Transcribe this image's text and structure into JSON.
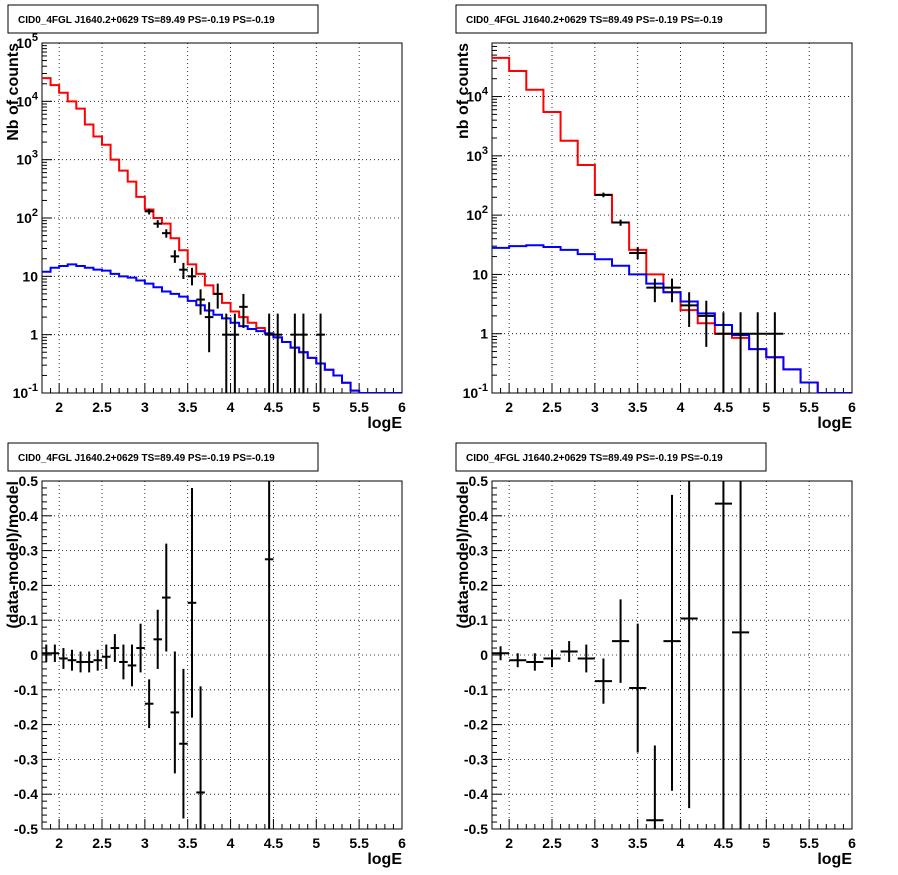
{
  "chart_data": [
    {
      "type": "line",
      "title": "CID0_4FGL J1640.2+0629 TS=89.49 PS=-0.19 PS=-0.19",
      "xlabel": "logE",
      "ylabel": "Nb of counts",
      "log_y": true,
      "xlim": [
        1.8,
        6
      ],
      "ylim": [
        0.1,
        100000
      ],
      "grid": true,
      "x_ticks": [
        "2",
        "2.5",
        "3",
        "3.5",
        "4",
        "4.5",
        "5",
        "5.5",
        "6"
      ],
      "x_tick_values": [
        2,
        2.5,
        3,
        3.5,
        4,
        4.5,
        5,
        5.5,
        6
      ],
      "y_ticks": [
        "10^-1",
        "1",
        "10",
        "10^2",
        "10^3",
        "10^4",
        "10^5"
      ],
      "y_tick_values": [
        0.1,
        1,
        10,
        100,
        1000,
        10000,
        100000
      ],
      "bin_edges": [
        1.8,
        1.9,
        2.0,
        2.1,
        2.2,
        2.3,
        2.4,
        2.5,
        2.6,
        2.7,
        2.8,
        2.9,
        3.0,
        3.1,
        3.2,
        3.3,
        3.4,
        3.5,
        3.6,
        3.7,
        3.8,
        3.9,
        4.0,
        4.1,
        4.2,
        4.3,
        4.4,
        4.5,
        4.6,
        4.7,
        4.8,
        4.9,
        5.0,
        5.1,
        5.2,
        5.3,
        5.4,
        5.5,
        5.6,
        5.7,
        5.8,
        5.9,
        6.0
      ],
      "series": [
        {
          "color": "#ff0000",
          "kind": "step",
          "values": [
            25000,
            19000,
            14000,
            10000,
            7500,
            4000,
            2500,
            1800,
            1000,
            650,
            420,
            230,
            140,
            100,
            80,
            45,
            28,
            16,
            11,
            7,
            5,
            3.5,
            2.5,
            2.0,
            1.6,
            1.3,
            1.05,
            0.9,
            0.75,
            0.6,
            0.5,
            0.4,
            0.32,
            0.25,
            0.2,
            0.15,
            0.11,
            0.1,
            0.1,
            0.1,
            0.1,
            0.1
          ]
        },
        {
          "color": "#0000ff",
          "kind": "step",
          "values": [
            12,
            14,
            15,
            16,
            15,
            14,
            13,
            12.5,
            11,
            10,
            9.5,
            8.5,
            7.5,
            6.5,
            5.5,
            5,
            4.5,
            3.8,
            3.2,
            2.6,
            2.2,
            1.9,
            1.6,
            1.4,
            1.25,
            1.15,
            1.05,
            0.9,
            0.75,
            0.6,
            0.5,
            0.4,
            0.32,
            0.25,
            0.2,
            0.15,
            0.11,
            0.1,
            0.1,
            0.1,
            0.1,
            0.1
          ]
        },
        {
          "color": "#000000",
          "kind": "errorbar",
          "points": [
            {
              "x": 3.05,
              "y": 130,
              "lo": 115,
              "hi": 145,
              "xe": 0.05
            },
            {
              "x": 3.15,
              "y": 80,
              "lo": 68,
              "hi": 92,
              "xe": 0.05
            },
            {
              "x": 3.25,
              "y": 55,
              "lo": 46,
              "hi": 64,
              "xe": 0.05
            },
            {
              "x": 3.35,
              "y": 22,
              "lo": 17,
              "hi": 28,
              "xe": 0.05
            },
            {
              "x": 3.45,
              "y": 13,
              "lo": 9,
              "hi": 17,
              "xe": 0.05
            },
            {
              "x": 3.55,
              "y": 10,
              "lo": 7,
              "hi": 14,
              "xe": 0.05
            },
            {
              "x": 3.65,
              "y": 4,
              "lo": 2.2,
              "hi": 6,
              "xe": 0.05
            },
            {
              "x": 3.75,
              "y": 2,
              "lo": 0.5,
              "hi": 3.6,
              "xe": 0.05
            },
            {
              "x": 3.85,
              "y": 5,
              "lo": 2.8,
              "hi": 7.5,
              "xe": 0.05
            },
            {
              "x": 3.95,
              "y": 1,
              "lo": 0.1,
              "hi": 2.3,
              "xe": 0.05
            },
            {
              "x": 4.05,
              "y": 1,
              "lo": 0.1,
              "hi": 2.3,
              "xe": 0.05
            },
            {
              "x": 4.15,
              "y": 3,
              "lo": 1.3,
              "hi": 5,
              "xe": 0.05
            },
            {
              "x": 4.45,
              "y": 1,
              "lo": 0.1,
              "hi": 2.3,
              "xe": 0.05
            },
            {
              "x": 4.55,
              "y": 1,
              "lo": 0.1,
              "hi": 2.3,
              "xe": 0.05
            },
            {
              "x": 4.75,
              "y": 1,
              "lo": 0.1,
              "hi": 2.3,
              "xe": 0.05
            },
            {
              "x": 4.85,
              "y": 1,
              "lo": 0.1,
              "hi": 2.3,
              "xe": 0.05
            },
            {
              "x": 5.05,
              "y": 1,
              "lo": 0.1,
              "hi": 2.3,
              "xe": 0.05
            }
          ]
        }
      ]
    },
    {
      "type": "line",
      "title": "CID0_4FGL J1640.2+0629 TS=89.49 PS=-0.19 PS=-0.19",
      "xlabel": "logE",
      "ylabel": "nb of counts",
      "log_y": true,
      "xlim": [
        1.8,
        6
      ],
      "ylim": [
        0.1,
        80000
      ],
      "grid": true,
      "x_ticks": [
        "2",
        "2.5",
        "3",
        "3.5",
        "4",
        "4.5",
        "5",
        "5.5",
        "6"
      ],
      "x_tick_values": [
        2,
        2.5,
        3,
        3.5,
        4,
        4.5,
        5,
        5.5,
        6
      ],
      "y_ticks": [
        "10^-1",
        "1",
        "10",
        "10^2",
        "10^3",
        "10^4"
      ],
      "y_tick_values": [
        0.1,
        1,
        10,
        100,
        1000,
        10000
      ],
      "bin_edges": [
        1.8,
        2.0,
        2.2,
        2.4,
        2.6,
        2.8,
        3.0,
        3.2,
        3.4,
        3.6,
        3.8,
        4.0,
        4.2,
        4.4,
        4.6,
        4.8,
        5.0,
        5.2,
        5.4,
        5.6,
        5.8,
        6.0
      ],
      "series": [
        {
          "color": "#ff0000",
          "kind": "step",
          "values": [
            45000,
            27000,
            13000,
            5500,
            1800,
            700,
            220,
            75,
            26,
            10,
            5,
            2.5,
            1.5,
            1.0,
            0.85,
            0.55,
            0.4,
            0.25,
            0.15,
            0.1,
            0.1
          ]
        },
        {
          "color": "#0000ff",
          "kind": "step",
          "values": [
            28,
            30,
            31,
            29,
            26,
            22,
            18,
            14,
            10,
            7,
            5,
            3.5,
            2.2,
            1.4,
            0.95,
            0.55,
            0.4,
            0.25,
            0.15,
            0.1,
            0.1
          ]
        },
        {
          "color": "#000000",
          "kind": "errorbar",
          "points": [
            {
              "x": 3.1,
              "y": 220,
              "lo": 200,
              "hi": 240,
              "xe": 0.1
            },
            {
              "x": 3.3,
              "y": 75,
              "lo": 66,
              "hi": 84,
              "xe": 0.1
            },
            {
              "x": 3.5,
              "y": 23,
              "lo": 18,
              "hi": 29,
              "xe": 0.1
            },
            {
              "x": 3.7,
              "y": 6,
              "lo": 3.4,
              "hi": 8.5,
              "xe": 0.1
            },
            {
              "x": 3.9,
              "y": 6,
              "lo": 3.4,
              "hi": 8.5,
              "xe": 0.1
            },
            {
              "x": 4.1,
              "y": 3,
              "lo": 1.3,
              "hi": 5,
              "xe": 0.1
            },
            {
              "x": 4.3,
              "y": 2,
              "lo": 0.6,
              "hi": 3.6,
              "xe": 0.1
            },
            {
              "x": 4.5,
              "y": 1,
              "lo": 0.1,
              "hi": 2.3,
              "xe": 0.1
            },
            {
              "x": 4.7,
              "y": 1,
              "lo": 0.1,
              "hi": 2.3,
              "xe": 0.1
            },
            {
              "x": 4.9,
              "y": 1,
              "lo": 0.1,
              "hi": 2.3,
              "xe": 0.1
            },
            {
              "x": 5.1,
              "y": 1,
              "lo": 0.1,
              "hi": 2.3,
              "xe": 0.1
            }
          ]
        }
      ]
    },
    {
      "type": "scatter",
      "title": "CID0_4FGL J1640.2+0629 TS=89.49 PS=-0.19 PS=-0.19",
      "xlabel": "logE",
      "ylabel": "(data-model)/model",
      "log_y": false,
      "xlim": [
        1.8,
        6
      ],
      "ylim": [
        -0.5,
        0.5
      ],
      "grid": true,
      "x_ticks": [
        "2",
        "2.5",
        "3",
        "3.5",
        "4",
        "4.5",
        "5",
        "5.5",
        "6"
      ],
      "x_tick_values": [
        2,
        2.5,
        3,
        3.5,
        4,
        4.5,
        5,
        5.5,
        6
      ],
      "y_ticks": [
        "-0.5",
        "-0.4",
        "-0.3",
        "-0.2",
        "-0.1",
        "0",
        "0.1",
        "0.2",
        "0.3",
        "0.4",
        "0.5"
      ],
      "y_tick_values": [
        -0.5,
        -0.4,
        -0.3,
        -0.2,
        -0.1,
        0,
        0.1,
        0.2,
        0.3,
        0.4,
        0.5
      ],
      "series": [
        {
          "color": "#000000",
          "kind": "errorbar",
          "points": [
            {
              "x": 1.85,
              "y": 0.005,
              "lo": -0.02,
              "hi": 0.03,
              "xe": 0.05
            },
            {
              "x": 1.95,
              "y": 0.005,
              "lo": -0.02,
              "hi": 0.03,
              "xe": 0.05
            },
            {
              "x": 2.05,
              "y": -0.01,
              "lo": -0.04,
              "hi": 0.02,
              "xe": 0.05
            },
            {
              "x": 2.15,
              "y": -0.015,
              "lo": -0.045,
              "hi": 0.015,
              "xe": 0.05
            },
            {
              "x": 2.25,
              "y": -0.02,
              "lo": -0.05,
              "hi": 0.01,
              "xe": 0.05
            },
            {
              "x": 2.35,
              "y": -0.02,
              "lo": -0.05,
              "hi": 0.01,
              "xe": 0.05
            },
            {
              "x": 2.45,
              "y": -0.015,
              "lo": -0.045,
              "hi": 0.015,
              "xe": 0.05
            },
            {
              "x": 2.55,
              "y": -0.005,
              "lo": -0.04,
              "hi": 0.03,
              "xe": 0.05
            },
            {
              "x": 2.65,
              "y": 0.02,
              "lo": -0.02,
              "hi": 0.06,
              "xe": 0.05
            },
            {
              "x": 2.75,
              "y": -0.02,
              "lo": -0.07,
              "hi": 0.03,
              "xe": 0.05
            },
            {
              "x": 2.85,
              "y": -0.03,
              "lo": -0.09,
              "hi": 0.03,
              "xe": 0.05
            },
            {
              "x": 2.95,
              "y": 0.02,
              "lo": -0.05,
              "hi": 0.09,
              "xe": 0.05
            },
            {
              "x": 3.05,
              "y": -0.14,
              "lo": -0.21,
              "hi": -0.07,
              "xe": 0.05
            },
            {
              "x": 3.15,
              "y": 0.045,
              "lo": -0.04,
              "hi": 0.13,
              "xe": 0.05
            },
            {
              "x": 3.25,
              "y": 0.165,
              "lo": 0.01,
              "hi": 0.32,
              "xe": 0.05
            },
            {
              "x": 3.35,
              "y": -0.165,
              "lo": -0.34,
              "hi": 0.01,
              "xe": 0.05
            },
            {
              "x": 3.45,
              "y": -0.255,
              "lo": -0.47,
              "hi": -0.04,
              "xe": 0.05
            },
            {
              "x": 3.55,
              "y": 0.15,
              "lo": -0.18,
              "hi": 0.48,
              "xe": 0.05
            },
            {
              "x": 3.65,
              "y": -0.395,
              "lo": -0.5,
              "hi": -0.09,
              "xe": 0.05
            },
            {
              "x": 4.45,
              "y": 0.275,
              "lo": -0.5,
              "hi": 0.5,
              "xe": 0.05
            }
          ]
        }
      ]
    },
    {
      "type": "scatter",
      "title": "CID0_4FGL J1640.2+0629 TS=89.49 PS=-0.19 PS=-0.19",
      "xlabel": "logE",
      "ylabel": "(data-model)/model",
      "log_y": false,
      "xlim": [
        1.8,
        6
      ],
      "ylim": [
        -0.5,
        0.5
      ],
      "grid": true,
      "x_ticks": [
        "2",
        "2.5",
        "3",
        "3.5",
        "4",
        "4.5",
        "5",
        "5.5",
        "6"
      ],
      "x_tick_values": [
        2,
        2.5,
        3,
        3.5,
        4,
        4.5,
        5,
        5.5,
        6
      ],
      "y_ticks": [
        "-0.5",
        "-0.4",
        "-0.3",
        "-0.2",
        "-0.1",
        "0",
        "0.1",
        "0.2",
        "0.3",
        "0.4",
        "0.5"
      ],
      "y_tick_values": [
        -0.5,
        -0.4,
        -0.3,
        -0.2,
        -0.1,
        0,
        0.1,
        0.2,
        0.3,
        0.4,
        0.5
      ],
      "series": [
        {
          "color": "#000000",
          "kind": "errorbar",
          "points": [
            {
              "x": 1.9,
              "y": 0.005,
              "lo": -0.015,
              "hi": 0.025,
              "xe": 0.1
            },
            {
              "x": 2.1,
              "y": -0.015,
              "lo": -0.035,
              "hi": 0.005,
              "xe": 0.1
            },
            {
              "x": 2.3,
              "y": -0.02,
              "lo": -0.045,
              "hi": 0.005,
              "xe": 0.1
            },
            {
              "x": 2.5,
              "y": -0.01,
              "lo": -0.035,
              "hi": 0.015,
              "xe": 0.1
            },
            {
              "x": 2.7,
              "y": 0.01,
              "lo": -0.02,
              "hi": 0.04,
              "xe": 0.1
            },
            {
              "x": 2.9,
              "y": -0.01,
              "lo": -0.05,
              "hi": 0.03,
              "xe": 0.1
            },
            {
              "x": 3.1,
              "y": -0.075,
              "lo": -0.14,
              "hi": -0.01,
              "xe": 0.1
            },
            {
              "x": 3.3,
              "y": 0.04,
              "lo": -0.08,
              "hi": 0.16,
              "xe": 0.1
            },
            {
              "x": 3.5,
              "y": -0.095,
              "lo": -0.28,
              "hi": 0.09,
              "xe": 0.1
            },
            {
              "x": 3.7,
              "y": -0.475,
              "lo": -0.5,
              "hi": -0.26,
              "xe": 0.1
            },
            {
              "x": 3.9,
              "y": 0.04,
              "lo": -0.39,
              "hi": 0.46,
              "xe": 0.1
            },
            {
              "x": 4.1,
              "y": 0.105,
              "lo": -0.44,
              "hi": 0.5,
              "xe": 0.1
            },
            {
              "x": 4.5,
              "y": 0.435,
              "lo": -0.5,
              "hi": 0.5,
              "xe": 0.1
            },
            {
              "x": 4.7,
              "y": 0.065,
              "lo": -0.5,
              "hi": 0.5,
              "xe": 0.1
            }
          ]
        }
      ]
    }
  ]
}
